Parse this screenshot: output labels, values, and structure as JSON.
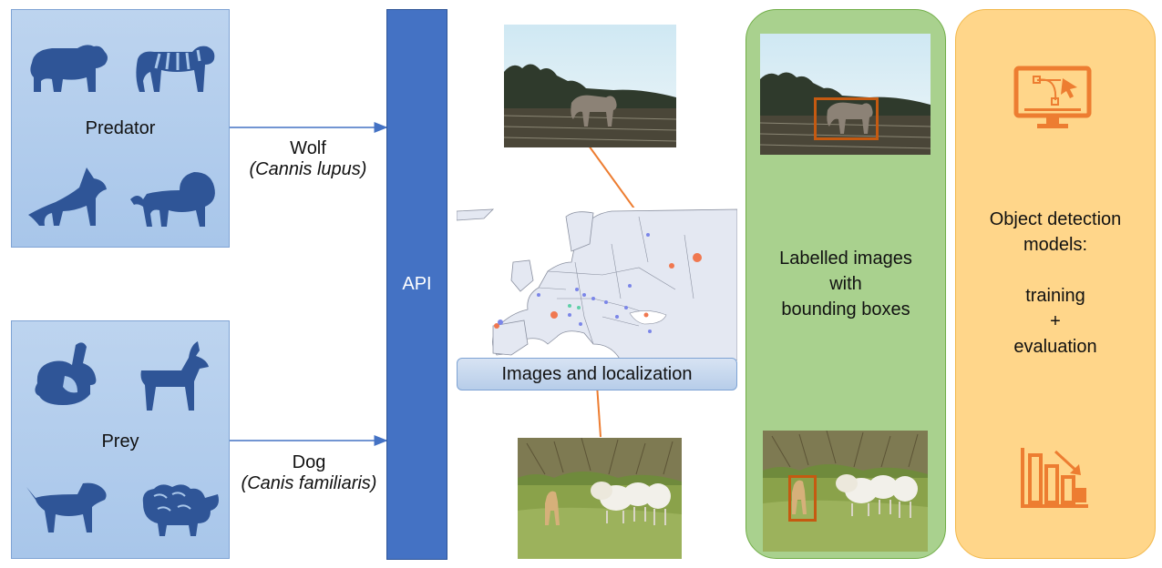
{
  "predator_group": {
    "label": "Predator",
    "icons": [
      "bear-icon",
      "tiger-icon",
      "wolf-icon",
      "lion-icon"
    ]
  },
  "prey_group": {
    "label": "Prey",
    "icons": [
      "rabbit-icon",
      "deer-icon",
      "dog-icon",
      "sheep-icon"
    ]
  },
  "api": {
    "label": "API"
  },
  "wolf_arrow": {
    "common": "Wolf",
    "scientific": "(Cannis lupus)"
  },
  "dog_arrow": {
    "common": "Dog",
    "scientific": "(Canis familiaris)"
  },
  "map": {
    "caption": "Images and localization"
  },
  "labelled_panel": {
    "lines": [
      "Labelled images",
      "with",
      "bounding boxes"
    ]
  },
  "models_panel": {
    "lines": [
      "Object detection",
      "models:",
      "",
      "training",
      "+",
      "evaluation"
    ],
    "icons": [
      "monitor-vector-icon",
      "bar-chart-decrease-icon"
    ]
  },
  "colors": {
    "icon_blue": "#2f5597",
    "box_blue": "#a8c6ea",
    "api_blue": "#4472c4",
    "green_panel": "#a9d18e",
    "orange_panel": "#ffd68a",
    "accent_orange": "#ed7d31"
  }
}
